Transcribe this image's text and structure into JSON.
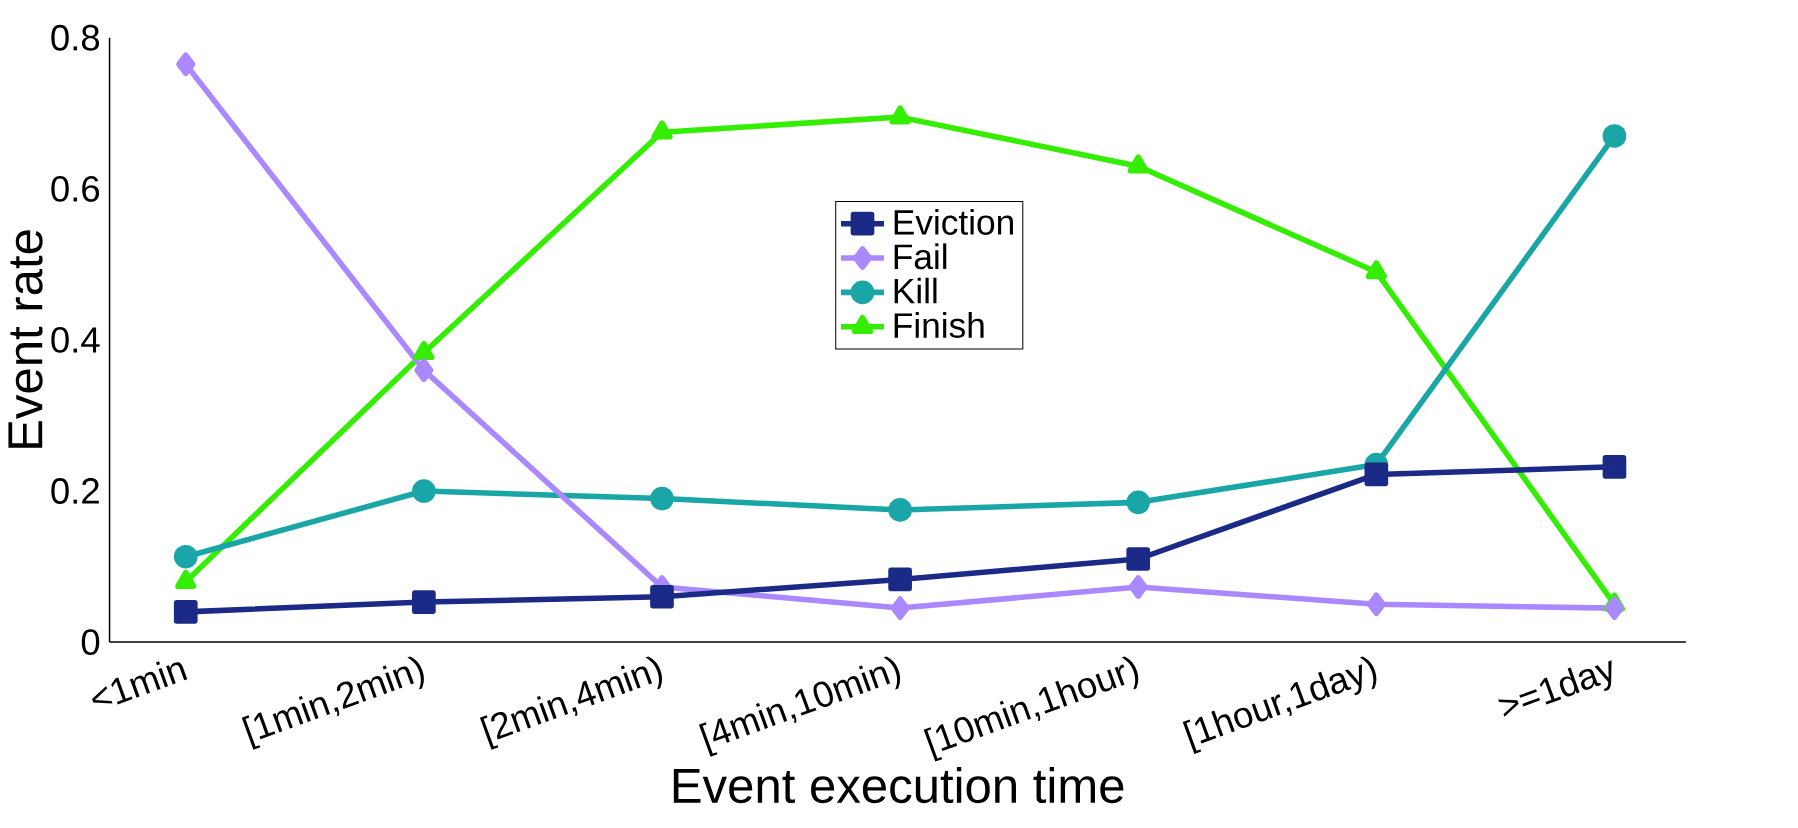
{
  "chart_data": {
    "type": "line",
    "xlabel": "Event execution time",
    "ylabel": "Event rate",
    "categories": [
      "<1min",
      "[1min,2min)",
      "[2min,4min)",
      "[4min,10min)",
      "[10min,1hour)",
      "[1hour,1day)",
      ">=1day"
    ],
    "series": [
      {
        "name": "Eviction",
        "color": "#1a2a86",
        "marker": "square",
        "values": [
          0.04,
          0.053,
          0.06,
          0.083,
          0.11,
          0.222,
          0.232
        ]
      },
      {
        "name": "Fail",
        "color": "#aa88ff",
        "marker": "diamond",
        "values": [
          0.765,
          0.36,
          0.073,
          0.045,
          0.073,
          0.05,
          0.045
        ]
      },
      {
        "name": "Kill",
        "color": "#1aa6a6",
        "marker": "circle",
        "values": [
          0.113,
          0.2,
          0.19,
          0.175,
          0.185,
          0.235,
          0.67
        ]
      },
      {
        "name": "Finish",
        "color": "#33ee00",
        "marker": "triangle",
        "values": [
          0.08,
          0.383,
          0.675,
          0.695,
          0.63,
          0.49,
          0.05
        ]
      }
    ],
    "ylim": [
      0,
      0.8
    ],
    "yticks": [
      0,
      0.2,
      0.4,
      0.6,
      0.8
    ],
    "legend": "top",
    "line_style": "solid"
  }
}
